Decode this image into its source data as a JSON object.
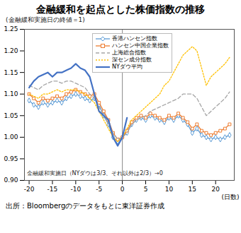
{
  "chart_data": {
    "type": "line",
    "title": "金融緩和を起点とした株価指数の推移",
    "subtitle": "(金融緩和実施日の終値＝1)",
    "annotation": "金融緩和実施日（NYダウは3/3、それ以外は2/3）→0",
    "x_label": "(日数)",
    "caption": "出所：Bloombergのデータをもとに東洋証券作成",
    "event_x": 0,
    "x": [
      -20,
      -19,
      -18,
      -17,
      -16,
      -15,
      -14,
      -13,
      -12,
      -11,
      -10,
      -9,
      -8,
      -7,
      -6,
      -5,
      -4,
      -3,
      -2,
      -1,
      0,
      1,
      2,
      3,
      4,
      5,
      6,
      7,
      8,
      9,
      10,
      11,
      12,
      13,
      14,
      15,
      16,
      17,
      18,
      19,
      20,
      21,
      22,
      23
    ],
    "series": [
      {
        "name": "香港ハンセン指数",
        "color": "#5b9bd5",
        "marker": "diamond",
        "line_style": "solid",
        "values": [
          1.085,
          1.075,
          1.07,
          1.08,
          1.075,
          1.08,
          1.085,
          1.08,
          1.09,
          1.095,
          1.1,
          1.095,
          1.09,
          1.085,
          1.09,
          1.075,
          1.05,
          1.03,
          1.0,
          0.99,
          1.0,
          1.01,
          1.03,
          1.04,
          1.045,
          1.04,
          1.05,
          1.045,
          1.04,
          1.035,
          1.045,
          1.04,
          1.05,
          1.04,
          1.03,
          1.01,
          1.02,
          1.005,
          1.0,
          0.995,
          1.0,
          0.995,
          1.0,
          1.005
        ]
      },
      {
        "name": "ハンセン中国企業指数",
        "color": "#ed7d31",
        "marker": "square",
        "line_style": "solid",
        "values": [
          1.1,
          1.09,
          1.08,
          1.09,
          1.085,
          1.09,
          1.095,
          1.09,
          1.1,
          1.105,
          1.11,
          1.105,
          1.1,
          1.095,
          1.1,
          1.08,
          1.06,
          1.04,
          1.01,
          0.995,
          1.0,
          1.015,
          1.035,
          1.045,
          1.05,
          1.045,
          1.055,
          1.05,
          1.045,
          1.04,
          1.05,
          1.045,
          1.055,
          1.045,
          1.035,
          1.02,
          1.03,
          1.015,
          1.01,
          1.005,
          1.01,
          1.015,
          1.02,
          1.03
        ]
      },
      {
        "name": "上海総合指数",
        "color": "#a5a5a5",
        "marker": "none",
        "line_style": "dashed",
        "values": [
          1.12,
          1.115,
          1.11,
          1.12,
          1.125,
          1.13,
          1.13,
          1.125,
          1.13,
          1.13,
          1.125,
          1.12,
          1.115,
          1.1,
          1.09,
          1.07,
          1.05,
          1.03,
          1.01,
          0.995,
          1.0,
          1.01,
          1.03,
          1.04,
          1.045,
          1.05,
          1.06,
          1.065,
          1.07,
          1.075,
          1.08,
          1.085,
          1.09,
          1.1,
          1.1,
          1.1,
          1.09,
          1.07,
          1.05,
          1.06,
          1.07,
          1.08,
          1.09,
          1.105
        ]
      },
      {
        "name": "深セン成分指数",
        "color": "#ffc000",
        "marker": "none",
        "line_style": "dotted",
        "values": [
          1.1,
          1.095,
          1.09,
          1.1,
          1.1,
          1.105,
          1.11,
          1.105,
          1.11,
          1.11,
          1.11,
          1.105,
          1.1,
          1.09,
          1.08,
          1.06,
          1.04,
          1.02,
          1.0,
          0.99,
          1.0,
          1.02,
          1.04,
          1.05,
          1.06,
          1.07,
          1.08,
          1.09,
          1.1,
          1.12,
          1.13,
          1.15,
          1.17,
          1.19,
          1.2,
          1.21,
          1.2,
          1.16,
          1.12,
          1.14,
          1.15,
          1.16,
          1.17,
          1.185
        ]
      },
      {
        "name": "NYダウ平均",
        "color": "#4472c4",
        "marker": "none",
        "line_style": "solid",
        "values": [
          1.115,
          1.13,
          1.14,
          1.145,
          1.15,
          1.14,
          1.15,
          1.15,
          1.155,
          1.16,
          1.17,
          1.16,
          1.155,
          1.14,
          1.1,
          1.06,
          1.05,
          1.04,
          1.0,
          0.98,
          1.0,
          1.045,
          null,
          null,
          null,
          null,
          null,
          null,
          null,
          null,
          null,
          null,
          null,
          null,
          null,
          null,
          null,
          null,
          null,
          null,
          null,
          null,
          null,
          null
        ]
      }
    ],
    "xlim": [
      -21,
      24
    ],
    "xticks": [
      -20,
      -15,
      -10,
      -5,
      0,
      5,
      10,
      15,
      20
    ],
    "ylim": [
      0.9,
      1.25
    ],
    "yticks": [
      {
        "value": 0.9,
        "label": "0.90"
      },
      0.95,
      {
        "value": 1.0,
        "label": "1.00"
      },
      1.05,
      {
        "value": 1.1,
        "label": "1.10"
      },
      1.15,
      {
        "value": 1.2,
        "label": "1.20"
      },
      1.25
    ],
    "grid": false,
    "legend": "top"
  }
}
